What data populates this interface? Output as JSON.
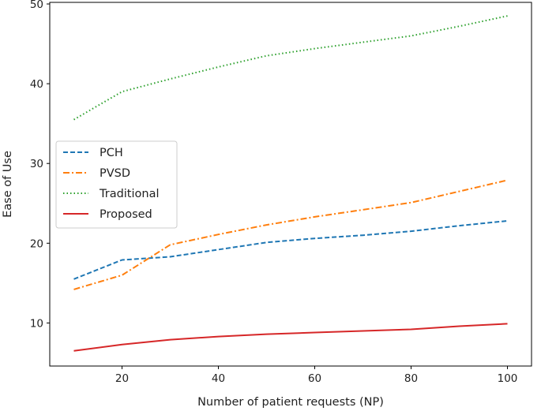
{
  "chart_data": {
    "type": "line",
    "title": "",
    "xlabel": "Number of patient requests (NP)",
    "ylabel": "Ease of Use",
    "xlim": [
      5,
      105
    ],
    "ylim": [
      4.6,
      50.2
    ],
    "xticks": [
      20,
      40,
      60,
      80,
      100
    ],
    "yticks": [
      10,
      20,
      30,
      40,
      50
    ],
    "x": [
      10,
      20,
      30,
      40,
      50,
      60,
      70,
      80,
      90,
      100
    ],
    "grid": false,
    "legend_position": "center-left",
    "series": [
      {
        "name": "PCH",
        "color": "#1f77b4",
        "style": "dashed",
        "values": [
          15.5,
          17.9,
          18.3,
          19.2,
          20.1,
          20.6,
          21.0,
          21.5,
          22.2,
          22.8
        ]
      },
      {
        "name": "PVSD",
        "color": "#ff7f0e",
        "style": "dashdot",
        "values": [
          14.2,
          16.0,
          19.8,
          21.1,
          22.3,
          23.3,
          24.2,
          25.1,
          26.5,
          27.9
        ]
      },
      {
        "name": "Traditional",
        "color": "#2ca02c",
        "style": "dotted",
        "values": [
          35.5,
          39.0,
          40.6,
          42.1,
          43.5,
          44.4,
          45.2,
          46.0,
          47.2,
          48.5
        ]
      },
      {
        "name": "Proposed",
        "color": "#d62728",
        "style": "solid",
        "values": [
          6.5,
          7.3,
          7.9,
          8.3,
          8.6,
          8.8,
          9.0,
          9.2,
          9.6,
          9.9
        ]
      }
    ]
  }
}
